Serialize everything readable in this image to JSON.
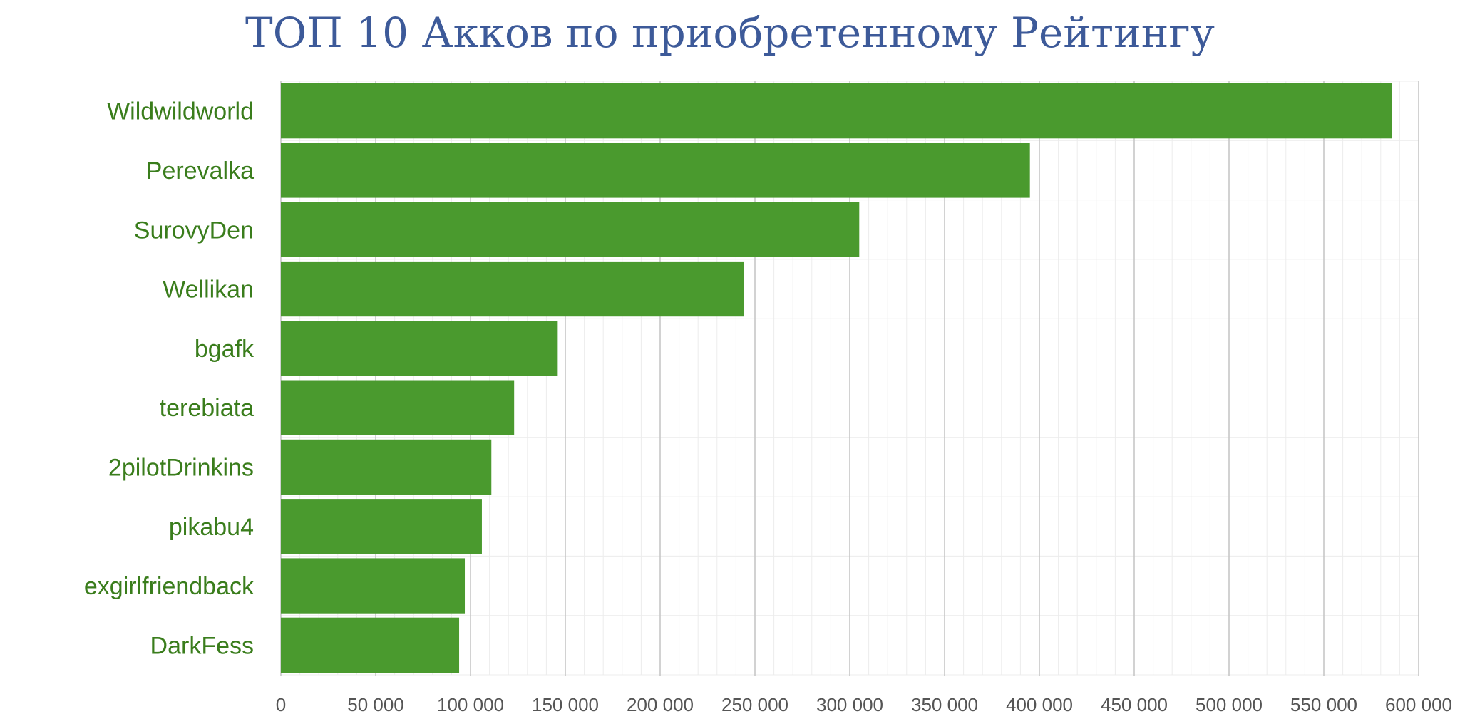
{
  "chart_data": {
    "type": "bar",
    "orientation": "horizontal",
    "title": "ТОП 10 Акков по приобретенному Рейтингу",
    "categories": [
      "Wildwildworld",
      "Perevalka",
      "SurovyDen",
      "Wellikan",
      "bgafk",
      "terebiata",
      "2pilotDrinkins",
      "pikabu4",
      "exgirlfriendback",
      "DarkFess"
    ],
    "values": [
      586000,
      395000,
      305000,
      244000,
      146000,
      123000,
      111000,
      106000,
      97000,
      94000
    ],
    "xlim": [
      0,
      600000
    ],
    "x_ticks": [
      0,
      50000,
      100000,
      150000,
      200000,
      250000,
      300000,
      350000,
      400000,
      450000,
      500000,
      550000,
      600000
    ],
    "x_tick_labels": [
      "0",
      "50 000",
      "100 000",
      "150 000",
      "200 000",
      "250 000",
      "300 000",
      "350 000",
      "400 000",
      "450 000",
      "500 000",
      "550 000",
      "600 000"
    ],
    "xlabel": "",
    "ylabel": "",
    "grid": true,
    "legend": "none",
    "bar_color": "#4a9a2e",
    "label_color": "#3a7d1c",
    "title_color": "#3d5a99"
  }
}
